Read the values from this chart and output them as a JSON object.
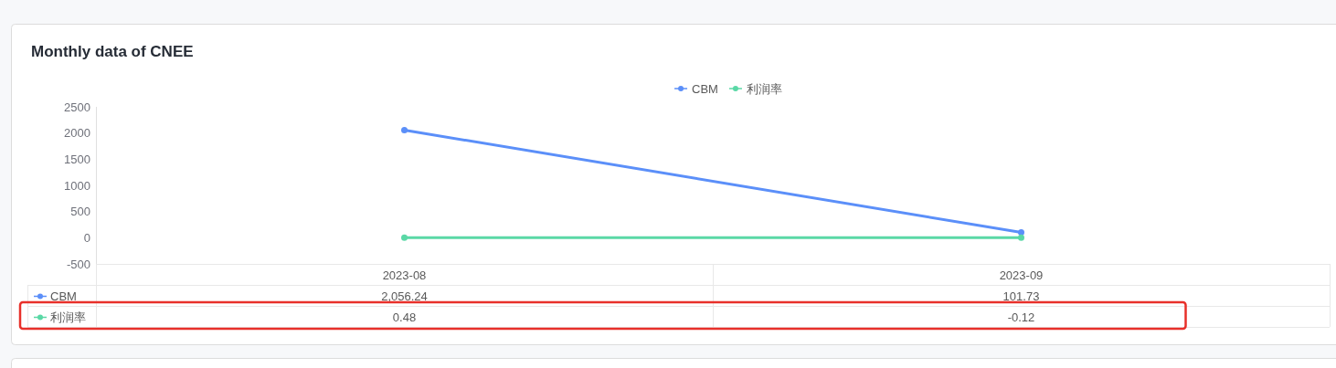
{
  "chart_data": {
    "type": "line",
    "title": "Monthly data of CNEE",
    "categories": [
      "2023-08",
      "2023-09"
    ],
    "series": [
      {
        "name": "CBM",
        "color": "#5b8ff9",
        "values": [
          2056.24,
          101.73
        ],
        "value_labels": [
          "2,056.24",
          "101.73"
        ]
      },
      {
        "name": "利润率",
        "color": "#5ad8a6",
        "values": [
          0.48,
          -0.12
        ],
        "value_labels": [
          "0.48",
          "-0.12"
        ]
      }
    ],
    "ylim": [
      -500,
      2500
    ],
    "yticks": [
      -500,
      0,
      500,
      1000,
      1500,
      2000,
      2500
    ],
    "legend": "top",
    "marker": "circle",
    "line_style": "solid",
    "grid": false
  }
}
